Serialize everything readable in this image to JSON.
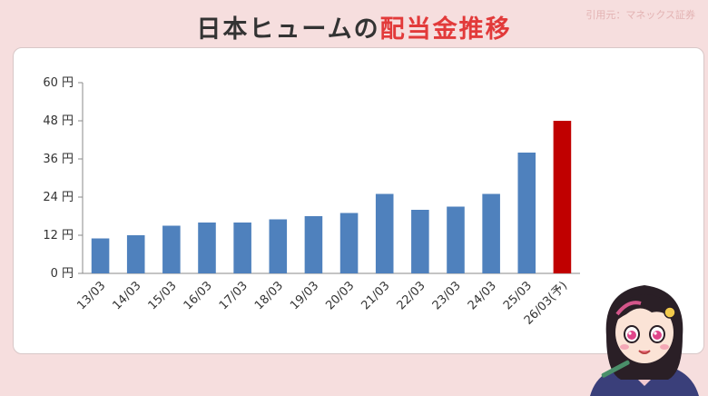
{
  "title": {
    "prefix": "日本ヒュームの",
    "highlight": "配当金推移"
  },
  "source": "引用元：マネックス証券",
  "colors": {
    "background": "#f6dede",
    "bar": "#4f81bd",
    "forecast_bar": "#c00000",
    "title_highlight": "#e23a3a"
  },
  "chart_data": {
    "type": "bar",
    "categories": [
      "13/03",
      "14/03",
      "15/03",
      "16/03",
      "17/03",
      "18/03",
      "19/03",
      "20/03",
      "21/03",
      "22/03",
      "23/03",
      "24/03",
      "25/03",
      "26/03(予)"
    ],
    "values": [
      11,
      12,
      15,
      16,
      16,
      17,
      18,
      19,
      25,
      20,
      21,
      25,
      38,
      48
    ],
    "highlight_index": 13,
    "ylim": [
      0,
      60
    ],
    "yticks": [
      0,
      12,
      24,
      36,
      48,
      60
    ],
    "ytick_unit": "円",
    "grid": false,
    "legend": "none"
  },
  "mascot_icon": "girl-character-illustration"
}
